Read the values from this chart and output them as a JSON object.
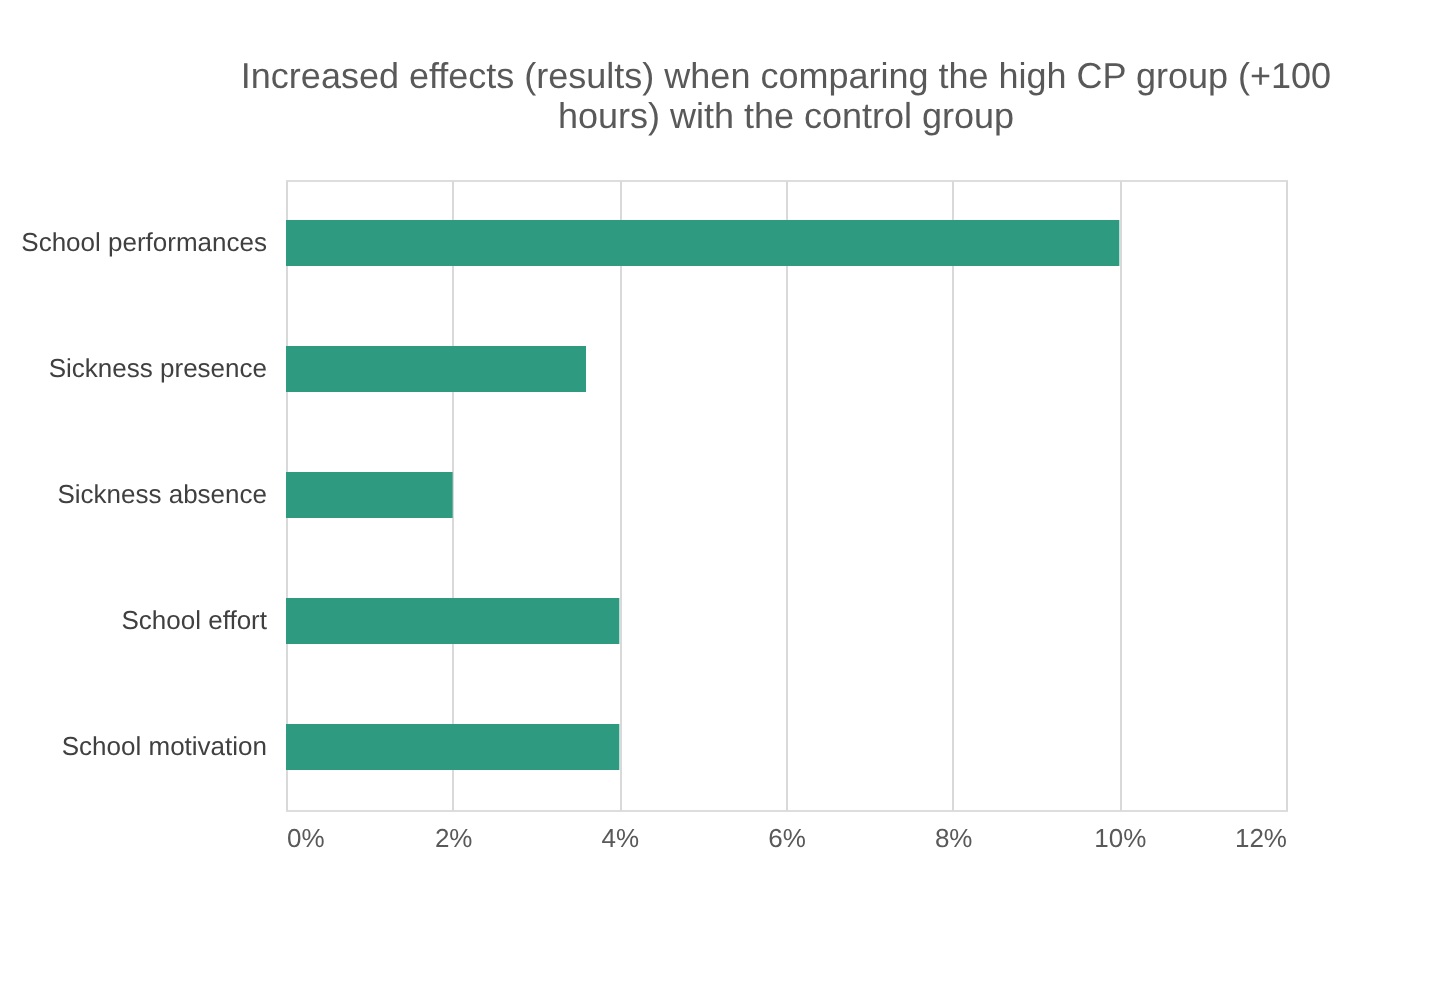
{
  "chart_data": {
    "type": "bar",
    "orientation": "horizontal",
    "title": "Increased effects (results) when comparing the high CP group (+100 hours) with the control group",
    "categories": [
      "School performances",
      "Sickness presence",
      "Sickness absence",
      "School effort",
      "School motivation"
    ],
    "values": [
      10,
      3.6,
      2,
      4,
      4
    ],
    "color": "#2e9b80",
    "xlim": [
      0,
      12
    ],
    "xticks": [
      {
        "value": 0,
        "label": "0%"
      },
      {
        "value": 2,
        "label": "2%"
      },
      {
        "value": 4,
        "label": "4%"
      },
      {
        "value": 6,
        "label": "6%"
      },
      {
        "value": 8,
        "label": "8%"
      },
      {
        "value": 10,
        "label": "10%"
      },
      {
        "value": 12,
        "label": "12%"
      }
    ],
    "grid": "x"
  }
}
